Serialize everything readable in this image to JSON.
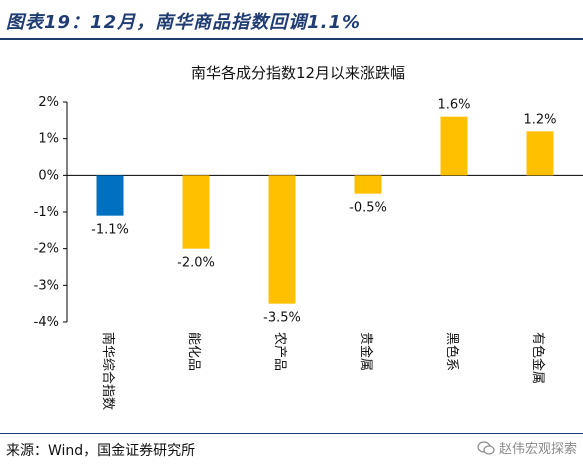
{
  "figure": {
    "title": "图表19：12月，南华商品指数回调1.1%",
    "source": "来源：Wind，国金证券研究所",
    "watermark": "赵伟宏观探索"
  },
  "chart_data": {
    "type": "bar",
    "title": "南华各成分指数12月以来涨跌幅",
    "xlabel": "",
    "ylabel": "",
    "categories": [
      "南华综合指数",
      "能化品",
      "农产品",
      "贵金属",
      "黑色系",
      "有色金属"
    ],
    "values": [
      -1.1,
      -2.0,
      -3.5,
      -0.5,
      1.6,
      1.2
    ],
    "value_labels": [
      "-1.1%",
      "-2.0%",
      "-3.5%",
      "-0.5%",
      "1.6%",
      "1.2%"
    ],
    "colors": [
      "#0070c0",
      "#ffc000",
      "#ffc000",
      "#ffc000",
      "#ffc000",
      "#ffc000"
    ],
    "ylim": [
      -4,
      2
    ],
    "yticks": [
      2,
      1,
      0,
      -1,
      -2,
      -3,
      -4
    ],
    "ytick_labels": [
      "2%",
      "1%",
      "0%",
      "-1%",
      "-2%",
      "-3%",
      "-4%"
    ],
    "grid": false,
    "legend": "none"
  }
}
